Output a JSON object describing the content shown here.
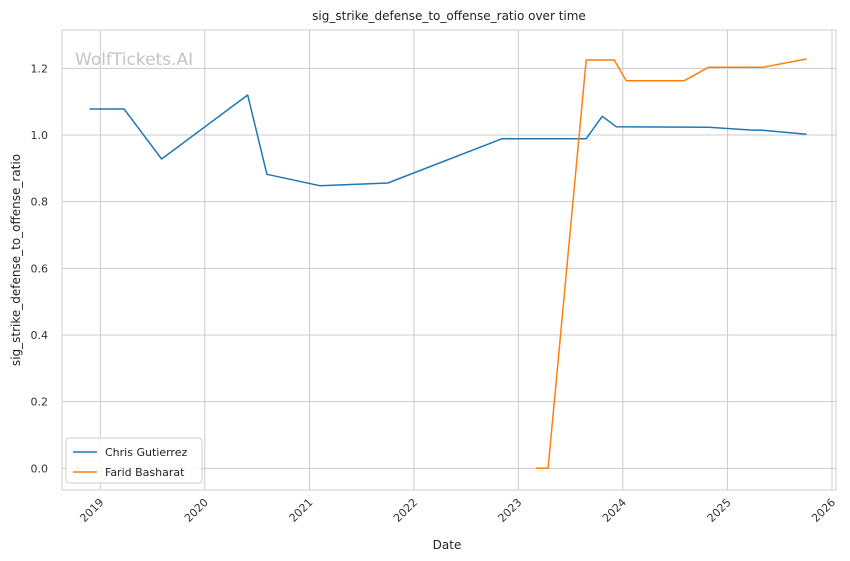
{
  "chart_data": {
    "type": "line",
    "title": "sig_strike_defense_to_offense_ratio over time",
    "xlabel": "Date",
    "ylabel": "sig_strike_defense_to_offense_ratio",
    "watermark": "WolfTickets.AI",
    "grid": true,
    "legend_position": "lower-left",
    "xlim": [
      "2018-08-20",
      "2026-01-15"
    ],
    "ylim": [
      -0.065,
      1.315
    ],
    "x_ticks": [
      "2019",
      "2020",
      "2021",
      "2022",
      "2023",
      "2024",
      "2025",
      "2026"
    ],
    "y_ticks": [
      "0.0",
      "0.2",
      "0.4",
      "0.6",
      "0.8",
      "1.0",
      "1.2"
    ],
    "series": [
      {
        "name": "Chris Gutierrez",
        "color": "#1f77b4",
        "points": [
          [
            "2018-11-24",
            1.078
          ],
          [
            "2019-03-25",
            1.078
          ],
          [
            "2019-08-03",
            0.928
          ],
          [
            "2020-05-30",
            1.12
          ],
          [
            "2020-08-05",
            0.882
          ],
          [
            "2021-02-06",
            0.848
          ],
          [
            "2021-10-02",
            0.856
          ],
          [
            "2022-11-05",
            0.989
          ],
          [
            "2023-08-26",
            0.989
          ],
          [
            "2023-10-21",
            1.056
          ],
          [
            "2023-12-09",
            1.025
          ],
          [
            "2024-10-26",
            1.023
          ],
          [
            "2025-03-22",
            1.015
          ],
          [
            "2025-05-03",
            1.014
          ],
          [
            "2025-10-04",
            1.002
          ]
        ]
      },
      {
        "name": "Farid Basharat",
        "color": "#ff7f0e",
        "points": [
          [
            "2023-03-04",
            0.0
          ],
          [
            "2023-04-15",
            0.0
          ],
          [
            "2023-08-26",
            1.225
          ],
          [
            "2023-12-02",
            1.225
          ],
          [
            "2024-01-13",
            1.163
          ],
          [
            "2024-08-03",
            1.163
          ],
          [
            "2024-10-26",
            1.203
          ],
          [
            "2025-05-03",
            1.203
          ],
          [
            "2025-10-04",
            1.228
          ]
        ]
      }
    ]
  }
}
